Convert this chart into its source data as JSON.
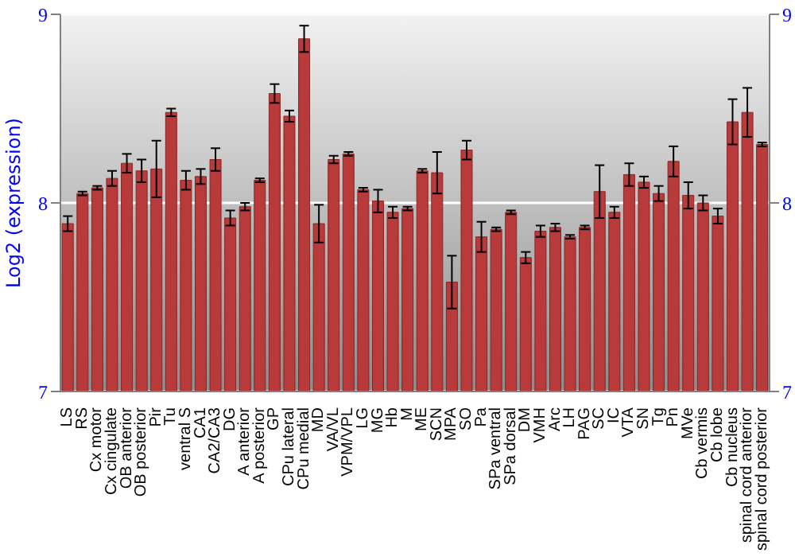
{
  "chart_data": {
    "type": "bar",
    "ylabel": "Log2 (expression)",
    "categories": [
      "LS",
      "RS",
      "Cx motor",
      "Cx cingulate",
      "OB anterior",
      "OB posterior",
      "Pir",
      "Tu",
      "ventral S",
      "CA1",
      "CA2/CA3",
      "DG",
      "A anterior",
      "A posterior",
      "GP",
      "CPu lateral",
      "CPu medial",
      "MD",
      "VA/VL",
      "VPM/VPL",
      "LG",
      "MG",
      "Hb",
      "M",
      "ME",
      "SCN",
      "MPA",
      "SO",
      "Pa",
      "SPa ventral",
      "SPa dorsal",
      "DM",
      "VMH",
      "Arc",
      "LH",
      "PAG",
      "SC",
      "IC",
      "VTA",
      "SN",
      "Tg",
      "Pn",
      "MVe",
      "Cb vermis",
      "Cb lobe",
      "Cb nucleus",
      "spinal cord anterior",
      "spinal cord posterior"
    ],
    "values": [
      7.89,
      8.05,
      8.08,
      8.13,
      8.21,
      8.17,
      8.18,
      8.48,
      8.12,
      8.14,
      8.23,
      7.92,
      7.98,
      8.12,
      8.58,
      8.46,
      8.87,
      7.89,
      8.23,
      8.26,
      8.07,
      8.01,
      7.95,
      7.97,
      8.17,
      8.16,
      7.58,
      8.28,
      7.82,
      7.86,
      7.95,
      7.71,
      7.85,
      7.87,
      7.82,
      7.87,
      8.06,
      7.95,
      8.15,
      8.11,
      8.05,
      8.22,
      8.04,
      8.0,
      7.93,
      8.43,
      8.48,
      8.31
    ],
    "errors": [
      0.04,
      0.01,
      0.01,
      0.04,
      0.05,
      0.06,
      0.15,
      0.02,
      0.05,
      0.04,
      0.06,
      0.04,
      0.02,
      0.01,
      0.05,
      0.03,
      0.07,
      0.1,
      0.02,
      0.01,
      0.01,
      0.06,
      0.03,
      0.01,
      0.01,
      0.11,
      0.14,
      0.05,
      0.08,
      0.01,
      0.01,
      0.03,
      0.03,
      0.02,
      0.01,
      0.01,
      0.14,
      0.03,
      0.06,
      0.03,
      0.04,
      0.08,
      0.07,
      0.04,
      0.04,
      0.12,
      0.13,
      0.01
    ],
    "color": "#b83a3a",
    "ylim": [
      7,
      9
    ],
    "yticks": [
      7,
      8,
      9
    ],
    "y2lim": [
      7,
      9
    ],
    "y2ticks": [
      7,
      8,
      9
    ],
    "grid": "y"
  }
}
